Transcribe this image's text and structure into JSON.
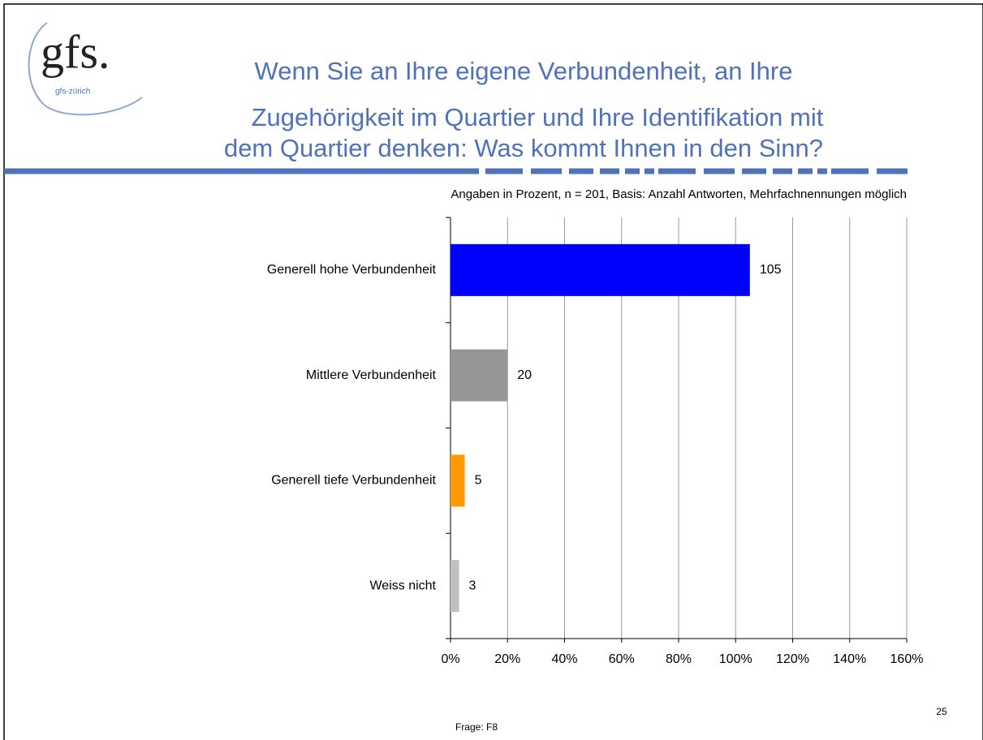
{
  "logo": {
    "mark": "gfs.",
    "sub": "gfs-zürich"
  },
  "chart_data": {
    "type": "hbar",
    "title": [
      "Wenn Sie an Ihre eigene Verbundenheit, an Ihre",
      "Zugehörigkeit im Quartier und Ihre Identifikation mit",
      "dem Quartier denken: Was kommt Ihnen in den Sinn?"
    ],
    "subtitle": "Angaben in Prozent, n = 201, Basis: Anzahl Antworten, Mehrfachnennungen möglich",
    "categories": [
      "Generell hohe Verbundenheit",
      "Mittlere Verbundenheit",
      "Generell tiefe Verbundenheit",
      "Weiss nicht"
    ],
    "values": [
      105,
      20,
      5,
      3
    ],
    "colors": [
      "#0000ff",
      "#969696",
      "#ff9900",
      "#c0c0c0"
    ],
    "xlim": [
      0,
      160
    ],
    "xticks": [
      {
        "value": 0,
        "label": "0%"
      },
      {
        "value": 20,
        "label": "20%"
      },
      {
        "value": 40,
        "label": "40%"
      },
      {
        "value": 60,
        "label": "60%"
      },
      {
        "value": 80,
        "label": "80%"
      },
      {
        "value": 100,
        "label": "100%"
      },
      {
        "value": 120,
        "label": "120%"
      },
      {
        "value": 140,
        "label": "140%"
      },
      {
        "value": 160,
        "label": "160%"
      }
    ],
    "grid": true
  },
  "footer": {
    "page": "25",
    "question": "Frage: F8"
  }
}
